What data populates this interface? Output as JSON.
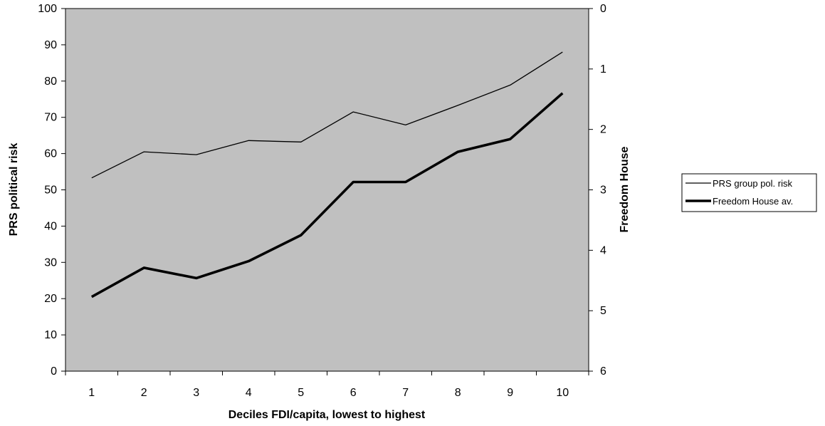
{
  "chart_data": {
    "type": "line",
    "categories": [
      "1",
      "2",
      "3",
      "4",
      "5",
      "6",
      "7",
      "8",
      "9",
      "10"
    ],
    "xlabel": "Deciles FDI/capita, lowest to highest",
    "ylabel": "PRS political risk",
    "y2label": "Freedom House",
    "ylim": [
      0,
      100
    ],
    "yticks": [
      "0",
      "10",
      "20",
      "30",
      "40",
      "50",
      "60",
      "70",
      "80",
      "90",
      "100"
    ],
    "y2lim": [
      0,
      6
    ],
    "y2_inverted": true,
    "y2ticks": [
      "0",
      "1",
      "2",
      "3",
      "4",
      "5",
      "6"
    ],
    "plot_background": "#c0c0c0",
    "grid": false,
    "legend_position": "right",
    "series": [
      {
        "name": "PRS group pol. risk",
        "axis": "left",
        "color": "#000000",
        "weight": "thin",
        "values": [
          53.3,
          60.5,
          59.7,
          63.6,
          63.2,
          71.5,
          67.9,
          73.3,
          78.9,
          88.0
        ]
      },
      {
        "name": "Freedom House av.",
        "axis": "right",
        "color": "#000000",
        "weight": "thick",
        "values": [
          4.77,
          4.29,
          4.46,
          4.18,
          3.75,
          2.87,
          2.87,
          2.37,
          2.16,
          1.4
        ]
      }
    ]
  }
}
